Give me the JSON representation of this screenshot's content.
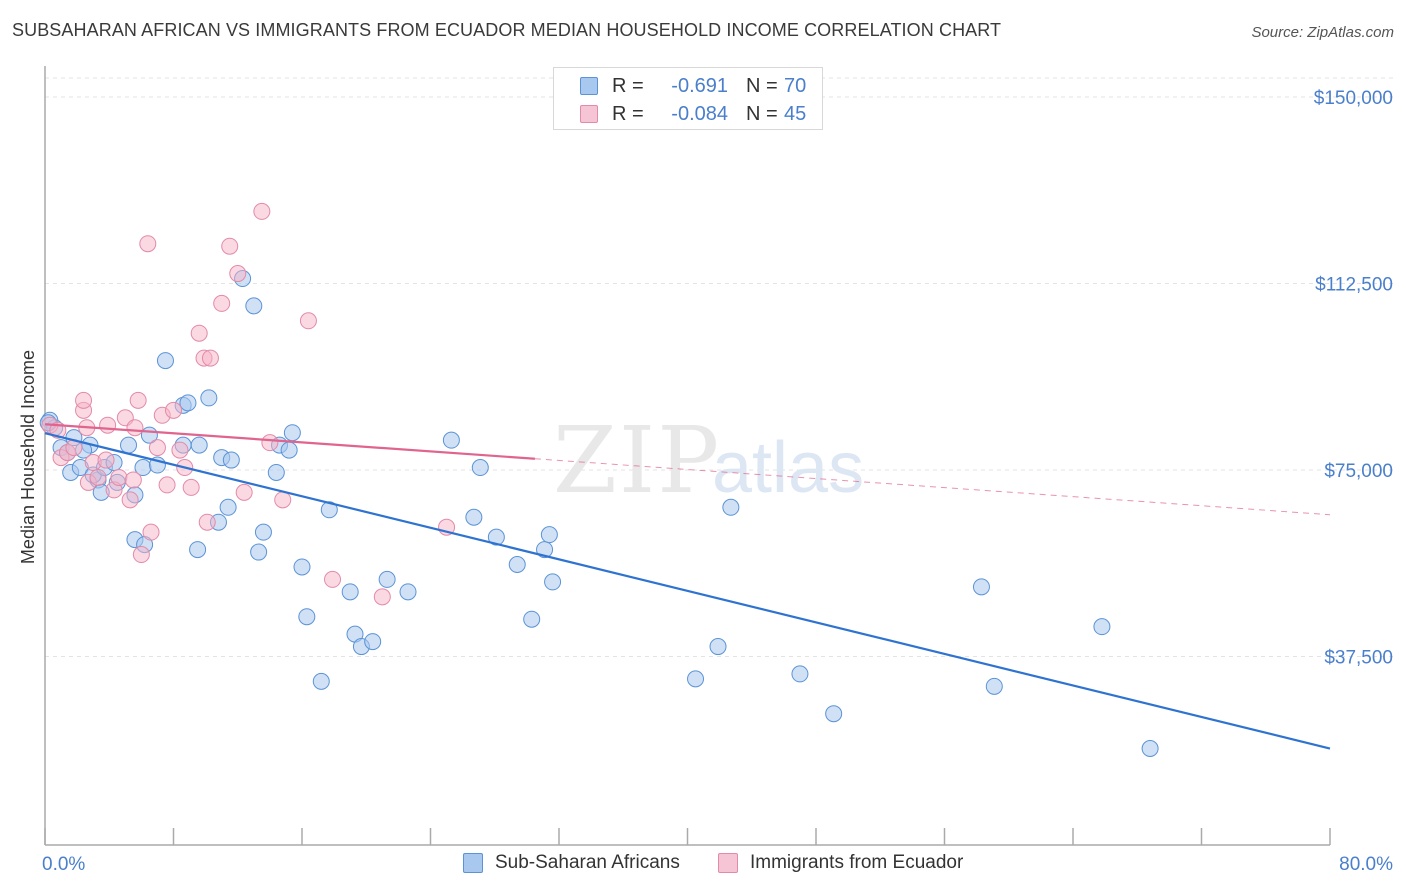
{
  "header": {
    "title": "SUBSAHARAN AFRICAN VS IMMIGRANTS FROM ECUADOR MEDIAN HOUSEHOLD INCOME CORRELATION CHART",
    "source": "Source: ZipAtlas.com"
  },
  "watermark": {
    "zip": "ZIP",
    "atlas": "atlas"
  },
  "legend": {
    "rows": [
      {
        "r_label": "R = ",
        "r_value": "-0.691",
        "n_label": "N = ",
        "n_value": "70",
        "color": "#a9c8ef"
      },
      {
        "r_label": "R = ",
        "r_value": "-0.084",
        "n_label": "N = ",
        "n_value": "45",
        "color": "#f5b3c8"
      }
    ]
  },
  "bottom_legend": {
    "items": [
      {
        "label": "Sub-Saharan Africans",
        "color": "#a9c8ef"
      },
      {
        "label": "Immigrants from Ecuador",
        "color": "#f5b3c8"
      }
    ]
  },
  "chart_data": {
    "type": "scatter",
    "xlabel": "",
    "ylabel": "Median Household Income",
    "xlim": [
      0,
      80
    ],
    "ylim": [
      0,
      150000
    ],
    "x_tick_labels": [
      "0.0%",
      "80.0%"
    ],
    "y_ticks": [
      37500,
      75000,
      112500,
      150000
    ],
    "y_tick_labels": [
      "$37,500",
      "$75,000",
      "$112,500",
      "$150,000"
    ],
    "grid": "horizontal dashed",
    "legend_position": "top-center",
    "colors": {
      "blue_fill": "#a9c8ef",
      "blue_stroke": "#5b93d6",
      "blue_line": "#2f73d0",
      "pink_fill": "#f5b3c8",
      "pink_stroke": "#e38aa8",
      "pink_line": "#e0648e"
    },
    "series": [
      {
        "name": "Sub-Saharan Africans",
        "r": -0.691,
        "n": 70,
        "trend": {
          "x1": 0,
          "y1": 82400,
          "x2": 80,
          "y2": 19000,
          "dashed_from": null
        },
        "points": [
          [
            0.3,
            85000
          ],
          [
            0.6,
            83500
          ],
          [
            1.0,
            79500
          ],
          [
            1.4,
            78500
          ],
          [
            1.6,
            74500
          ],
          [
            2.2,
            75500
          ],
          [
            2.8,
            80000
          ],
          [
            2.4,
            79000
          ],
          [
            3.3,
            73000
          ],
          [
            3.5,
            70500
          ],
          [
            3.0,
            74000
          ],
          [
            3.7,
            75500
          ],
          [
            4.3,
            76500
          ],
          [
            4.5,
            72500
          ],
          [
            5.2,
            80000
          ],
          [
            5.6,
            61000
          ],
          [
            5.6,
            70000
          ],
          [
            6.1,
            75500
          ],
          [
            6.2,
            60000
          ],
          [
            6.5,
            82000
          ],
          [
            7.0,
            76000
          ],
          [
            7.5,
            97000
          ],
          [
            8.6,
            88000
          ],
          [
            8.9,
            88500
          ],
          [
            8.6,
            80000
          ],
          [
            9.5,
            59000
          ],
          [
            9.6,
            80000
          ],
          [
            10.2,
            89500
          ],
          [
            10.8,
            64500
          ],
          [
            11.0,
            77500
          ],
          [
            11.4,
            67500
          ],
          [
            11.6,
            77000
          ],
          [
            12.3,
            113500
          ],
          [
            13.0,
            108000
          ],
          [
            13.3,
            58500
          ],
          [
            13.6,
            62500
          ],
          [
            14.4,
            74500
          ],
          [
            14.6,
            80000
          ],
          [
            15.2,
            79000
          ],
          [
            15.4,
            82500
          ],
          [
            16.0,
            55500
          ],
          [
            16.3,
            45500
          ],
          [
            17.2,
            32500
          ],
          [
            17.7,
            67000
          ],
          [
            19.0,
            50500
          ],
          [
            19.3,
            42000
          ],
          [
            19.7,
            39500
          ],
          [
            20.4,
            40500
          ],
          [
            21.3,
            53000
          ],
          [
            22.6,
            50500
          ],
          [
            25.3,
            81000
          ],
          [
            26.7,
            65500
          ],
          [
            27.1,
            75500
          ],
          [
            28.1,
            61500
          ],
          [
            29.4,
            56000
          ],
          [
            30.3,
            45000
          ],
          [
            31.1,
            59000
          ],
          [
            31.4,
            62000
          ],
          [
            31.6,
            52500
          ],
          [
            40.5,
            33000
          ],
          [
            41.9,
            39500
          ],
          [
            42.7,
            67500
          ],
          [
            47.0,
            34000
          ],
          [
            49.1,
            26000
          ],
          [
            58.3,
            51500
          ],
          [
            59.1,
            31500
          ],
          [
            65.8,
            43500
          ],
          [
            68.8,
            19000
          ],
          [
            0.2,
            84500
          ],
          [
            1.8,
            81500
          ]
        ]
      },
      {
        "name": "Immigrants from Ecuador",
        "r": -0.084,
        "n": 45,
        "trend": {
          "x1": 0,
          "y1": 84200,
          "x2": 80,
          "y2": 66000,
          "dashed_from": 30.5
        },
        "points": [
          [
            0.3,
            84000
          ],
          [
            0.8,
            83000
          ],
          [
            1.0,
            77500
          ],
          [
            1.4,
            78500
          ],
          [
            1.8,
            79500
          ],
          [
            2.4,
            87000
          ],
          [
            2.4,
            89000
          ],
          [
            2.6,
            83500
          ],
          [
            2.7,
            72500
          ],
          [
            3.0,
            76500
          ],
          [
            3.3,
            73500
          ],
          [
            3.8,
            77000
          ],
          [
            3.9,
            84000
          ],
          [
            4.3,
            71000
          ],
          [
            4.6,
            73500
          ],
          [
            5.0,
            85500
          ],
          [
            5.3,
            69000
          ],
          [
            5.5,
            73000
          ],
          [
            5.6,
            83500
          ],
          [
            5.8,
            89000
          ],
          [
            6.0,
            58000
          ],
          [
            6.4,
            120500
          ],
          [
            6.6,
            62500
          ],
          [
            7.0,
            79500
          ],
          [
            7.3,
            86000
          ],
          [
            7.6,
            72000
          ],
          [
            8.0,
            87000
          ],
          [
            8.4,
            79000
          ],
          [
            8.7,
            75500
          ],
          [
            9.1,
            71500
          ],
          [
            9.6,
            102500
          ],
          [
            9.9,
            97500
          ],
          [
            10.1,
            64500
          ],
          [
            10.3,
            97500
          ],
          [
            11.0,
            108500
          ],
          [
            11.5,
            120000
          ],
          [
            12.0,
            114500
          ],
          [
            12.4,
            70500
          ],
          [
            13.5,
            127000
          ],
          [
            14.0,
            80500
          ],
          [
            14.8,
            69000
          ],
          [
            16.4,
            105000
          ],
          [
            17.9,
            53000
          ],
          [
            21.0,
            49500
          ],
          [
            25.0,
            63500
          ]
        ]
      }
    ]
  }
}
